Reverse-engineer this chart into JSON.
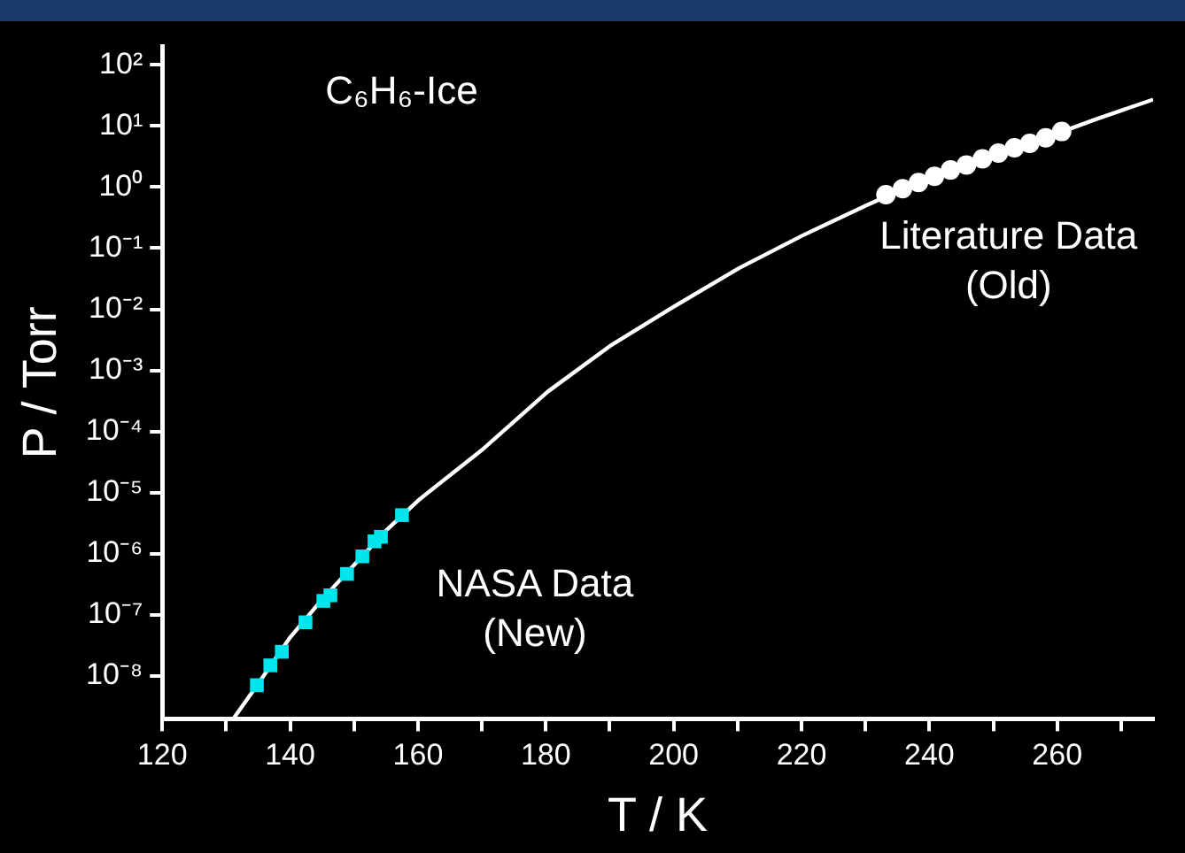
{
  "chart_data": {
    "type": "scatter",
    "xlabel": "T / K",
    "ylabel": "P / Torr",
    "annotations": [
      "C₆H₆-Ice"
    ],
    "xlim": [
      120,
      275
    ],
    "xticks": [
      120,
      {
        "value": 130,
        "label": null
      },
      140,
      {
        "value": 150,
        "label": null
      },
      160,
      {
        "value": 170,
        "label": null
      },
      180,
      {
        "value": 190,
        "label": null
      },
      200,
      {
        "value": 210,
        "label": null
      },
      220,
      {
        "value": 230,
        "label": null
      },
      240,
      {
        "value": 250,
        "label": null
      },
      260,
      {
        "value": 270,
        "label": null
      }
    ],
    "log": "y",
    "ylim": [
      2e-09,
      200
    ],
    "yticks": [
      {
        "value": 1e-08,
        "label": "10⁻⁸"
      },
      {
        "value": 1e-07,
        "label": "10⁻⁷"
      },
      {
        "value": 1e-06,
        "label": "10⁻⁶"
      },
      {
        "value": 1e-05,
        "label": "10⁻⁵"
      },
      {
        "value": 0.0001,
        "label": "10⁻⁴"
      },
      {
        "value": 0.001,
        "label": "10⁻³"
      },
      {
        "value": 0.01,
        "label": "10⁻²"
      },
      {
        "value": 0.1,
        "label": "10⁻¹"
      },
      {
        "value": 1,
        "label": "10⁰"
      },
      {
        "value": 10,
        "label": "10¹"
      },
      {
        "value": 100,
        "label": "10²"
      }
    ],
    "grid": false,
    "legend": false,
    "series": [
      {
        "type": "line",
        "color": "#ffffff",
        "marker": "none",
        "line_style": "solid",
        "x": [
          131.1,
          135,
          140,
          145,
          150,
          155,
          160.3,
          170,
          180.3,
          190,
          200,
          210.2,
          220.1,
          230.1,
          240,
          250,
          260,
          266.2,
          275
        ],
        "values": [
          2e-09,
          7.5e-09,
          4.3e-08,
          1.8e-07,
          6.6e-07,
          2.4e-06,
          7.9e-06,
          5e-05,
          0.00045,
          0.0025,
          0.011,
          0.047,
          0.16,
          0.5,
          1.45,
          3.3,
          7.5,
          13,
          27
        ]
      },
      {
        "name": "NASA Data (New)",
        "color": "#00e5ee",
        "marker": "square",
        "x": [
          134.8,
          136.9,
          138.7,
          142.4,
          145.2,
          146.3,
          148.9,
          151.3,
          153.2,
          154.2,
          157.5
        ],
        "values": [
          7.1e-09,
          1.5e-08,
          2.5e-08,
          7.6e-08,
          1.7e-07,
          2.1e-07,
          4.7e-07,
          9.1e-07,
          1.6e-06,
          1.9e-06,
          4.3e-06
        ]
      },
      {
        "name": "Literature Data (Old)",
        "color": "#ffffff",
        "marker": "circle",
        "x": [
          233.2,
          235.8,
          238.3,
          240.8,
          243.3,
          245.8,
          248.3,
          250.8,
          253.3,
          255.7,
          258.2,
          260.7
        ],
        "values": [
          0.75,
          0.94,
          1.19,
          1.5,
          1.9,
          2.3,
          2.9,
          3.6,
          4.4,
          5.2,
          6.4,
          8.1
        ]
      }
    ]
  }
}
